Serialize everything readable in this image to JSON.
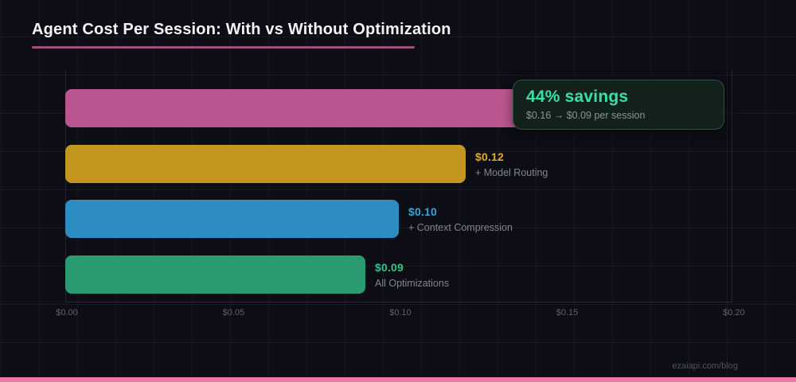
{
  "title": "Agent Cost Per Session: With vs Without Optimization",
  "chart_data": {
    "type": "bar",
    "orientation": "horizontal",
    "title": "Agent Cost Per Session: With vs Without Optimization",
    "categories": [
      "",
      "+ Model Routing",
      "+ Context Compression",
      "All Optimizations"
    ],
    "values": [
      0.16,
      0.12,
      0.1,
      0.09
    ],
    "value_labels": [
      "",
      "$0.12",
      "$0.10",
      "$0.09"
    ],
    "xlabel": "",
    "ylabel": "",
    "xlim": [
      0,
      0.2
    ],
    "x_ticks": [
      "$0.00",
      "$0.05",
      "$0.10",
      "$0.15",
      "$0.20"
    ],
    "grid": true,
    "annotation": {
      "headline": "44% savings",
      "detail": "$0.16 → $0.09 per session"
    }
  },
  "callout": {
    "headline": "44% savings",
    "detail": "$0.16 → $0.09 per session"
  },
  "footer": {
    "text": "ezaiapi.com/blog"
  },
  "colors": {
    "background": "#0d0e15",
    "title_text": "#f3f3f5",
    "title_underline": "#a0507c",
    "bars": [
      "#b9568f",
      "#c2961f",
      "#2d8cc0",
      "#2a9b70"
    ],
    "value_label_colors": [
      "",
      "#e3ab25",
      "#3ba2d8",
      "#36c28a"
    ],
    "sublabel_color": "#80858e",
    "tick_color": "#5d616b",
    "callout_bg": "#12211b",
    "callout_border": "#2d5244",
    "callout_headline": "#36e2a3",
    "callout_detail": "#8b919b",
    "bottom_strip": "#e57aab",
    "footer_text": "#4d525c"
  }
}
